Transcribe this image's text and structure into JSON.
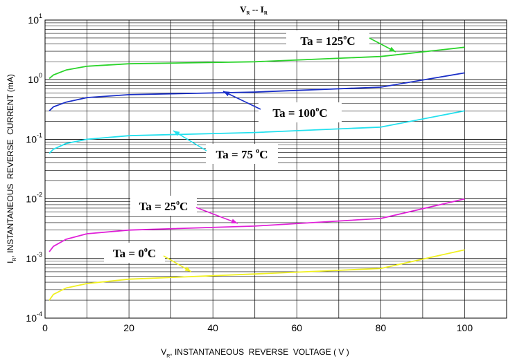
{
  "chart_data": {
    "type": "line",
    "title": {
      "main": "V",
      "sub1": "R",
      "sep": " -- ",
      "main2": "I",
      "sub2": "R"
    },
    "xlabel": {
      "main": "V",
      "sub": "R",
      "rest": ", INSTANTANEOUS  REVERSE  VOLTAGE ( V )"
    },
    "ylabel": {
      "main": "I",
      "sub": "R",
      "rest": ", INSTANTANEOUS  REVERSE  CURRENT (mA)"
    },
    "xlim": [
      0,
      110
    ],
    "ylim": [
      0.0001,
      10
    ],
    "yscale": "log",
    "grid": true,
    "x_ticks": [
      "0",
      "20",
      "40",
      "60",
      "80",
      "100"
    ],
    "y_ticks": [
      {
        "base": "10",
        "exp": "1"
      },
      {
        "base": "10",
        "exp": "0"
      },
      {
        "base": "10",
        "exp": "-1"
      },
      {
        "base": "10",
        "exp": "-2"
      },
      {
        "base": "10",
        "exp": "-3"
      },
      {
        "base": "10",
        "exp": "-4"
      }
    ],
    "series": [
      {
        "name": "Ta = 125°C",
        "color": "#2bd42b",
        "label": {
          "pre": "Ta = 125",
          "sup": "o",
          "post": "C"
        },
        "points": [
          [
            1,
            1.05
          ],
          [
            2,
            1.2
          ],
          [
            5,
            1.45
          ],
          [
            10,
            1.68
          ],
          [
            20,
            1.85
          ],
          [
            50,
            2.0
          ],
          [
            80,
            2.45
          ],
          [
            100,
            3.5
          ]
        ]
      },
      {
        "name": "Ta = 100°C",
        "color": "#1a2fc8",
        "label": {
          "pre": "Ta = 100",
          "sup": "o",
          "post": "C"
        },
        "points": [
          [
            1,
            0.3
          ],
          [
            2,
            0.35
          ],
          [
            5,
            0.42
          ],
          [
            10,
            0.5
          ],
          [
            20,
            0.56
          ],
          [
            50,
            0.62
          ],
          [
            80,
            0.75
          ],
          [
            100,
            1.3
          ]
        ]
      },
      {
        "name": "Ta = 75 °C",
        "color": "#22e0ee",
        "label": {
          "pre": "Ta = 75 ",
          "sup": "o",
          "post": "C"
        },
        "points": [
          [
            1,
            0.058
          ],
          [
            2,
            0.068
          ],
          [
            5,
            0.085
          ],
          [
            10,
            0.1
          ],
          [
            20,
            0.115
          ],
          [
            50,
            0.13
          ],
          [
            80,
            0.16
          ],
          [
            100,
            0.3
          ]
        ]
      },
      {
        "name": "Ta = 25°C",
        "color": "#e020d8",
        "label": {
          "pre": "Ta = 25",
          "sup": "o",
          "post": "C"
        },
        "points": [
          [
            1,
            0.0013
          ],
          [
            2,
            0.0016
          ],
          [
            5,
            0.0021
          ],
          [
            10,
            0.0026
          ],
          [
            20,
            0.003
          ],
          [
            50,
            0.0035
          ],
          [
            80,
            0.0047
          ],
          [
            100,
            0.01
          ]
        ]
      },
      {
        "name": "Ta = 0°C",
        "color": "#f0f020",
        "label": {
          "pre": "Ta = 0",
          "sup": "o",
          "post": "C"
        },
        "points": [
          [
            1,
            0.0002
          ],
          [
            2,
            0.00025
          ],
          [
            5,
            0.00032
          ],
          [
            10,
            0.00038
          ],
          [
            20,
            0.00045
          ],
          [
            50,
            0.00055
          ],
          [
            80,
            0.00068
          ],
          [
            100,
            0.0014
          ]
        ]
      }
    ]
  }
}
